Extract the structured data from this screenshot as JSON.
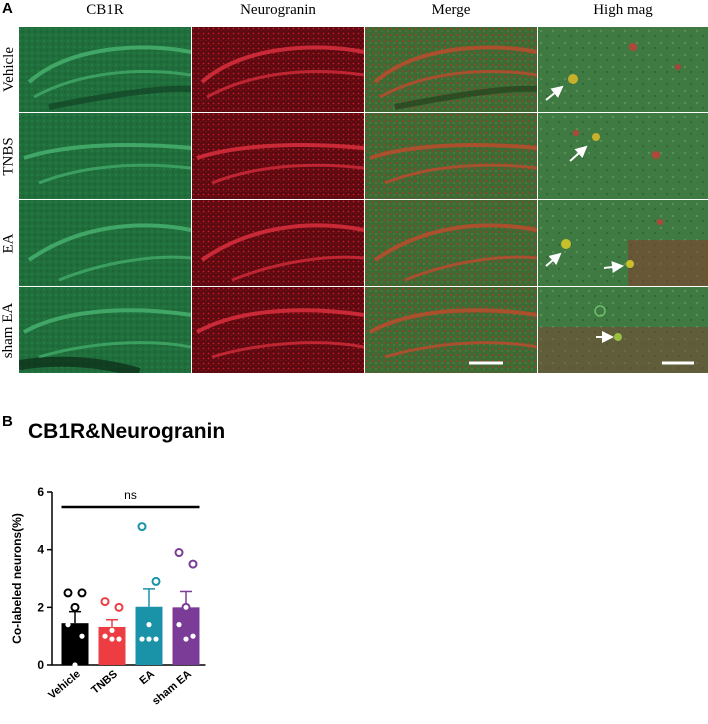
{
  "figure": {
    "panel_a_label": "A",
    "panel_b_label": "B",
    "columns": [
      "CB1R",
      "Neurogranin",
      "Merge",
      "High mag"
    ],
    "rows": [
      "Vehicle",
      "TNBS",
      "EA",
      "sham EA"
    ]
  },
  "colors": {
    "green_stain": "#1f6e3c",
    "red_stain": "#a0121c",
    "vehicle": "#000000",
    "tnbs": "#ee3d42",
    "ea": "#1a93a8",
    "sham_ea": "#7b3c98"
  },
  "chart_data": {
    "type": "bar",
    "title": "CB1R&Neurogranin",
    "ylabel": "Co-labeled neurons(%)",
    "xlabel": "",
    "ylim": [
      0,
      6
    ],
    "yticks": [
      0,
      2,
      4,
      6
    ],
    "categories": [
      "Vehicle",
      "TNBS",
      "EA",
      "sham EA"
    ],
    "values": [
      1.45,
      1.32,
      2.02,
      2.0
    ],
    "sem": [
      0.4,
      0.25,
      0.62,
      0.55
    ],
    "points": [
      [
        2.5,
        2.5,
        2.0,
        1.4,
        1.0,
        0.0
      ],
      [
        2.2,
        2.0,
        1.2,
        1.0,
        0.9,
        0.9
      ],
      [
        4.8,
        2.9,
        1.4,
        0.9,
        0.9,
        0.9
      ],
      [
        3.9,
        3.5,
        2.0,
        1.4,
        1.0,
        0.9
      ]
    ],
    "significance": {
      "label": "ns",
      "span": [
        "Vehicle",
        "sham EA"
      ]
    }
  }
}
